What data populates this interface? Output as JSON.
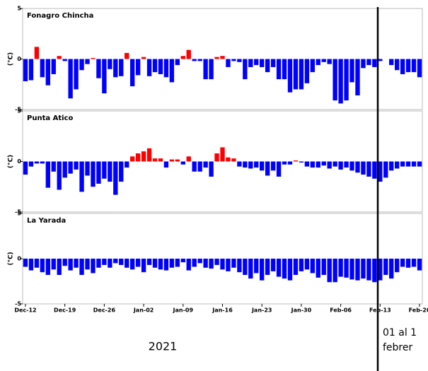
{
  "chart_data": {
    "type": "bar",
    "ylabel": "(°C)",
    "ylim": [
      -5,
      5
    ],
    "yticks": [
      -5,
      0,
      5
    ],
    "colors": {
      "positive": "#ff0000",
      "negative": "#0000ff"
    },
    "categories": [
      "Dec-12",
      null,
      null,
      null,
      null,
      null,
      null,
      "Dec-19",
      null,
      null,
      null,
      null,
      null,
      null,
      "Dec-26",
      null,
      null,
      null,
      null,
      null,
      null,
      "Jan-02",
      null,
      null,
      null,
      null,
      null,
      null,
      "Jan-09",
      null,
      null,
      null,
      null,
      null,
      null,
      "Jan-16",
      null,
      null,
      null,
      null,
      null,
      null,
      "Jan-23",
      null,
      null,
      null,
      null,
      null,
      null,
      "Jan-30",
      null,
      null,
      null,
      null,
      null,
      null,
      "Feb-06",
      null,
      null,
      null,
      null,
      null,
      null,
      "Feb-13",
      null,
      null,
      null,
      null,
      null,
      null,
      "Feb-20"
    ],
    "panels": [
      {
        "title": "Fonagro Chincha",
        "values": [
          -2.2,
          -2.1,
          1.2,
          -1.8,
          -2.6,
          -1.5,
          0.3,
          -0.2,
          -3.9,
          -3.0,
          -1.1,
          -0.5,
          0.1,
          -1.9,
          -3.4,
          -1.0,
          -1.8,
          -1.7,
          0.6,
          -2.7,
          -1.6,
          0.2,
          -1.7,
          -1.3,
          -1.5,
          -1.8,
          -2.3,
          -0.6,
          0.3,
          0.9,
          -0.2,
          -0.2,
          -2.0,
          -2.0,
          0.2,
          0.3,
          -0.8,
          -0.2,
          -0.3,
          -2.0,
          -0.8,
          -0.6,
          -0.8,
          -1.3,
          -0.8,
          -2.0,
          -2.0,
          -3.3,
          -3.0,
          -3.0,
          -2.4,
          -1.3,
          -0.6,
          -0.3,
          -0.5,
          -4.1,
          -4.4,
          -4.1,
          -2.3,
          -3.6,
          -0.9,
          -0.6,
          -0.8,
          -0.2,
          0.0,
          -0.6,
          -1.1,
          -1.5,
          -1.3,
          -1.3,
          -1.8
        ]
      },
      {
        "title": "Punta Atico",
        "values": [
          -1.3,
          -0.5,
          -0.2,
          -0.2,
          -2.6,
          -1.0,
          -2.8,
          -1.6,
          -1.2,
          -0.8,
          -3.0,
          -1.4,
          -2.5,
          -2.2,
          -1.7,
          -2.0,
          -3.3,
          -2.0,
          -0.6,
          0.5,
          0.8,
          1.0,
          1.3,
          0.3,
          0.3,
          -0.6,
          0.2,
          0.2,
          -0.3,
          0.5,
          -1.0,
          -1.0,
          -0.6,
          -1.5,
          0.8,
          1.4,
          0.4,
          0.3,
          -0.5,
          -0.6,
          -0.7,
          -0.6,
          -0.9,
          -1.4,
          -0.9,
          -1.5,
          -0.3,
          -0.3,
          0.1,
          -0.1,
          -0.5,
          -0.6,
          -0.6,
          -0.4,
          -0.7,
          -0.5,
          -0.8,
          -0.6,
          -0.9,
          -1.1,
          -1.3,
          -1.5,
          -1.7,
          -2.0,
          -1.6,
          -0.9,
          -0.7,
          -0.5,
          -0.5,
          -0.5,
          -0.5
        ]
      },
      {
        "title": "La Yarada",
        "values": [
          -0.9,
          -1.3,
          -1.0,
          -1.5,
          -1.8,
          -1.2,
          -1.8,
          -0.8,
          -1.3,
          -1.0,
          -1.8,
          -1.2,
          -1.6,
          -1.0,
          -0.7,
          -1.0,
          -0.5,
          -0.7,
          -1.0,
          -1.2,
          -0.9,
          -1.5,
          -0.7,
          -1.0,
          -1.2,
          -1.3,
          -1.0,
          -0.9,
          -0.4,
          -1.3,
          -0.9,
          -0.5,
          -1.0,
          -1.1,
          -0.7,
          -1.2,
          -1.4,
          -1.0,
          -1.5,
          -1.8,
          -2.2,
          -1.6,
          -2.4,
          -1.8,
          -1.4,
          -2.0,
          -2.2,
          -2.4,
          -1.8,
          -1.4,
          -1.2,
          -1.6,
          -2.1,
          -1.8,
          -2.6,
          -2.6,
          -2.0,
          -2.1,
          -2.3,
          -2.4,
          -2.2,
          -2.4,
          -2.6,
          -2.4,
          -1.8,
          -2.2,
          -1.5,
          -0.9,
          -1.0,
          -0.9,
          -1.3
        ]
      }
    ],
    "year_label": "2021",
    "annotation": [
      "01 al 1",
      "febrer"
    ]
  }
}
